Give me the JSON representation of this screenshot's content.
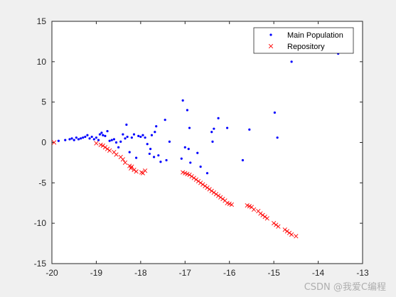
{
  "watermark": "CSDN @我爱C编程",
  "chart_data": {
    "type": "scatter",
    "title": "",
    "xlabel": "",
    "ylabel": "",
    "xlim": [
      -20,
      -13
    ],
    "ylim": [
      -15,
      15
    ],
    "xticks": [
      -20,
      -19,
      -18,
      -17,
      -16,
      -15,
      -14,
      -13
    ],
    "yticks": [
      -15,
      -10,
      -5,
      0,
      5,
      10,
      15
    ],
    "grid": false,
    "legend_position": "top-right",
    "series": [
      {
        "name": "Main Population",
        "marker": "dot",
        "color": "#0000ff",
        "points": [
          [
            -19.85,
            0.2
          ],
          [
            -19.7,
            0.3
          ],
          [
            -19.6,
            0.4
          ],
          [
            -19.55,
            0.5
          ],
          [
            -19.5,
            0.3
          ],
          [
            -19.45,
            0.6
          ],
          [
            -19.4,
            0.4
          ],
          [
            -19.35,
            0.5
          ],
          [
            -19.3,
            0.6
          ],
          [
            -19.25,
            0.7
          ],
          [
            -19.2,
            0.9
          ],
          [
            -19.15,
            0.5
          ],
          [
            -19.1,
            0.7
          ],
          [
            -19.05,
            0.4
          ],
          [
            -19.0,
            0.6
          ],
          [
            -18.95,
            0.3
          ],
          [
            -18.92,
            1.0
          ],
          [
            -18.88,
            1.2
          ],
          [
            -18.85,
            0.9
          ],
          [
            -18.8,
            0.8
          ],
          [
            -18.75,
            1.4
          ],
          [
            -18.7,
            0.2
          ],
          [
            -18.65,
            0.3
          ],
          [
            -18.6,
            0.4
          ],
          [
            -18.55,
            0.0
          ],
          [
            -18.5,
            -0.6
          ],
          [
            -18.45,
            0.1
          ],
          [
            -18.4,
            1.0
          ],
          [
            -18.35,
            0.5
          ],
          [
            -18.32,
            2.2
          ],
          [
            -18.3,
            0.7
          ],
          [
            -18.25,
            -1.2
          ],
          [
            -18.2,
            0.6
          ],
          [
            -18.15,
            1.0
          ],
          [
            -18.1,
            -1.9
          ],
          [
            -18.05,
            0.8
          ],
          [
            -18.0,
            0.7
          ],
          [
            -17.95,
            0.9
          ],
          [
            -17.9,
            0.6
          ],
          [
            -17.85,
            -0.2
          ],
          [
            -17.8,
            -1.4
          ],
          [
            -17.78,
            -0.8
          ],
          [
            -17.75,
            0.9
          ],
          [
            -17.7,
            -1.8
          ],
          [
            -17.68,
            1.3
          ],
          [
            -17.65,
            2.0
          ],
          [
            -17.6,
            -1.6
          ],
          [
            -17.55,
            -2.4
          ],
          [
            -17.45,
            2.8
          ],
          [
            -17.42,
            -2.2
          ],
          [
            -17.35,
            0.1
          ],
          [
            -17.05,
            5.2
          ],
          [
            -17.08,
            -2.0
          ],
          [
            -17.0,
            -0.6
          ],
          [
            -16.95,
            4.0
          ],
          [
            -16.92,
            -0.8
          ],
          [
            -16.9,
            1.8
          ],
          [
            -16.88,
            -2.5
          ],
          [
            -16.72,
            -1.3
          ],
          [
            -16.65,
            -3.0
          ],
          [
            -16.5,
            -3.8
          ],
          [
            -16.4,
            1.3
          ],
          [
            -16.38,
            0.1
          ],
          [
            -16.35,
            1.7
          ],
          [
            -16.25,
            3.0
          ],
          [
            -16.05,
            1.8
          ],
          [
            -15.7,
            -2.2
          ],
          [
            -15.55,
            1.6
          ],
          [
            -14.98,
            3.7
          ],
          [
            -14.92,
            0.6
          ],
          [
            -14.6,
            10.0
          ],
          [
            -13.55,
            11.0
          ]
        ]
      },
      {
        "name": "Repository",
        "marker": "x",
        "color": "#ff0000",
        "points": [
          [
            -19.95,
            0.0
          ],
          [
            -19.0,
            -0.1
          ],
          [
            -18.9,
            -0.3
          ],
          [
            -18.85,
            -0.4
          ],
          [
            -18.8,
            -0.6
          ],
          [
            -18.75,
            -0.8
          ],
          [
            -18.7,
            -1.0
          ],
          [
            -18.6,
            -1.2
          ],
          [
            -18.55,
            -1.5
          ],
          [
            -18.45,
            -1.8
          ],
          [
            -18.4,
            -2.1
          ],
          [
            -18.35,
            -2.5
          ],
          [
            -18.25,
            -2.9
          ],
          [
            -18.22,
            -3.2
          ],
          [
            -18.2,
            -3.0
          ],
          [
            -18.15,
            -3.4
          ],
          [
            -18.1,
            -3.6
          ],
          [
            -17.98,
            -3.7
          ],
          [
            -17.95,
            -3.8
          ],
          [
            -17.9,
            -3.5
          ],
          [
            -17.05,
            -3.7
          ],
          [
            -17.0,
            -3.8
          ],
          [
            -16.95,
            -3.9
          ],
          [
            -16.9,
            -4.0
          ],
          [
            -16.85,
            -4.2
          ],
          [
            -16.8,
            -4.4
          ],
          [
            -16.75,
            -4.6
          ],
          [
            -16.7,
            -4.8
          ],
          [
            -16.65,
            -5.0
          ],
          [
            -16.6,
            -5.2
          ],
          [
            -16.55,
            -5.4
          ],
          [
            -16.5,
            -5.6
          ],
          [
            -16.45,
            -5.8
          ],
          [
            -16.4,
            -6.0
          ],
          [
            -16.35,
            -6.2
          ],
          [
            -16.3,
            -6.4
          ],
          [
            -16.25,
            -6.6
          ],
          [
            -16.2,
            -6.8
          ],
          [
            -16.15,
            -7.0
          ],
          [
            -16.1,
            -7.2
          ],
          [
            -16.05,
            -7.5
          ],
          [
            -16.0,
            -7.6
          ],
          [
            -15.95,
            -7.7
          ],
          [
            -15.6,
            -7.8
          ],
          [
            -15.55,
            -7.9
          ],
          [
            -15.5,
            -8.0
          ],
          [
            -15.45,
            -8.3
          ],
          [
            -15.35,
            -8.5
          ],
          [
            -15.3,
            -8.8
          ],
          [
            -15.25,
            -9.0
          ],
          [
            -15.2,
            -9.2
          ],
          [
            -15.15,
            -9.4
          ],
          [
            -15.0,
            -10.0
          ],
          [
            -14.95,
            -10.2
          ],
          [
            -14.9,
            -10.4
          ],
          [
            -14.75,
            -10.8
          ],
          [
            -14.7,
            -11.0
          ],
          [
            -14.65,
            -11.2
          ],
          [
            -14.6,
            -11.4
          ],
          [
            -14.5,
            -11.6
          ]
        ]
      }
    ]
  }
}
